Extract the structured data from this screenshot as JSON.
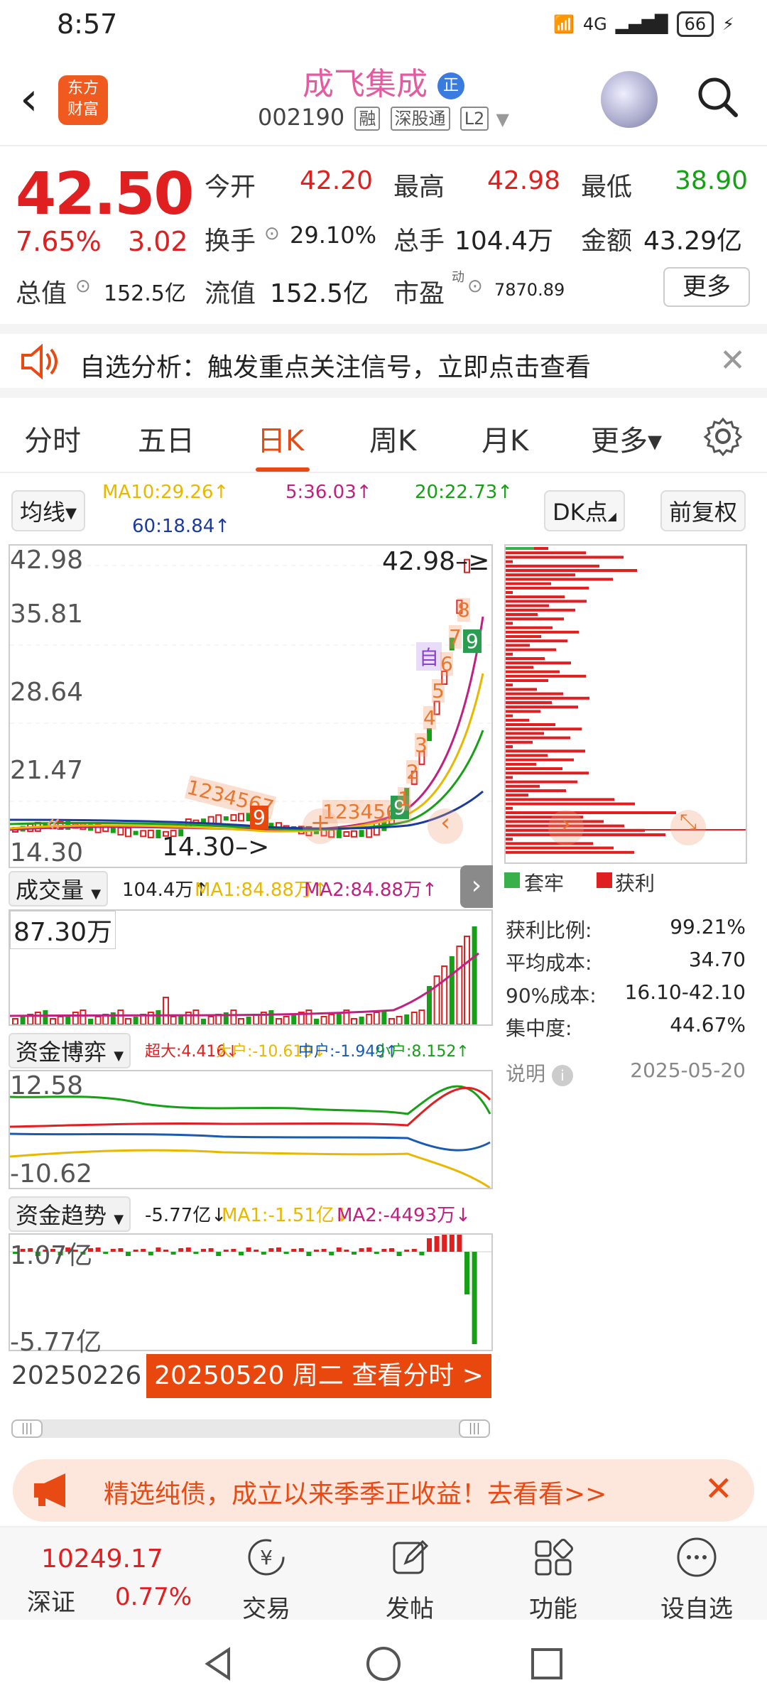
{
  "status": {
    "time": "8:57",
    "network": "4G",
    "battery": "66"
  },
  "header": {
    "stock_name": "成飞集成",
    "badge": "正",
    "code": "002190",
    "tags": [
      "融",
      "深股通",
      "L2"
    ]
  },
  "quote": {
    "price": "42.50",
    "change_pct": "7.65%",
    "change": "3.02",
    "open_label": "今开",
    "open": "42.20",
    "high_label": "最高",
    "high": "42.98",
    "low_label": "最低",
    "low": "38.90",
    "turnover_label": "换手",
    "turnover": "29.10%",
    "volume_label": "总手",
    "volume": "104.4万",
    "amount_label": "金额",
    "amount": "43.29亿",
    "mktcap_label": "总值",
    "mktcap": "152.5亿",
    "float_label": "流值",
    "float": "152.5亿",
    "pe_label": "市盈",
    "pe_sup": "动",
    "pe": "7870.89",
    "more": "更多"
  },
  "notice": {
    "text": "自选分析：触发重点关注信号，立即点击查看"
  },
  "tabs": [
    {
      "label": "分时"
    },
    {
      "label": "五日"
    },
    {
      "label": "日K"
    },
    {
      "label": "周K"
    },
    {
      "label": "月K"
    },
    {
      "label": "更多▾"
    }
  ],
  "ma_row": {
    "selector": "均线▾",
    "ma10": "MA10:29.26↑",
    "ma5": "5:36.03↑",
    "ma20": "20:22.73↑",
    "ma60": "60:18.84↑",
    "dk": "DK点",
    "fq": "前复权"
  },
  "kline": {
    "y_ticks": [
      "42.98",
      "35.81",
      "28.64",
      "21.47",
      "14.30"
    ],
    "high_marker": "42.98",
    "low_marker": "14.30",
    "seq_labels_1": "1234567",
    "seq_labels_2": "1234567",
    "badge_9": "9",
    "auto_label": "自",
    "count_labels": [
      "1",
      "2",
      "3",
      "4",
      "5",
      "6",
      "7",
      "8",
      "9"
    ]
  },
  "volume": {
    "selector": "成交量",
    "value": "104.4万↑",
    "ma1": "MA1:84.88万↑",
    "ma2": "MA2:84.88万↑",
    "axis_top": "87.30万"
  },
  "fund_game": {
    "selector": "资金博弈",
    "super": "超大:4.416↓",
    "large": "大户:-10.619↓",
    "mid": "中户:-1.949↑",
    "small": "小户:8.152↑",
    "axis_top": "12.58",
    "axis_bottom": "-10.62"
  },
  "fund_trend": {
    "selector": "资金趋势",
    "value": "-5.77亿↓",
    "ma1": "MA1:-1.51亿↓",
    "ma2": "MA2:-4493万↓",
    "axis_top": "1.07亿",
    "axis_bottom": "-5.77亿"
  },
  "dates": {
    "start": "20250226",
    "selected": "20250520 周二 查看分时 >"
  },
  "chips": {
    "legend_trap": "套牢",
    "legend_profit": "获利",
    "rows": [
      {
        "label": "获利比例:",
        "value": "99.21%"
      },
      {
        "label": "平均成本:",
        "value": "34.70"
      },
      {
        "label": "90%成本:",
        "value": "16.10-42.10"
      },
      {
        "label": "集中度:",
        "value": "44.67%"
      }
    ],
    "note": "说明",
    "date": "2025-05-20"
  },
  "ad": {
    "text": "精选纯债，成立以来季季正收益！去看看>>"
  },
  "bottom": {
    "index_value": "10249.17",
    "index_name": "深证",
    "index_change": "0.77%",
    "items": [
      {
        "label": "交易"
      },
      {
        "label": "发帖"
      },
      {
        "label": "功能"
      },
      {
        "label": "设自选"
      }
    ]
  },
  "colors": {
    "accent": "#e84a14",
    "up": "#e02020",
    "down": "#16a016"
  }
}
